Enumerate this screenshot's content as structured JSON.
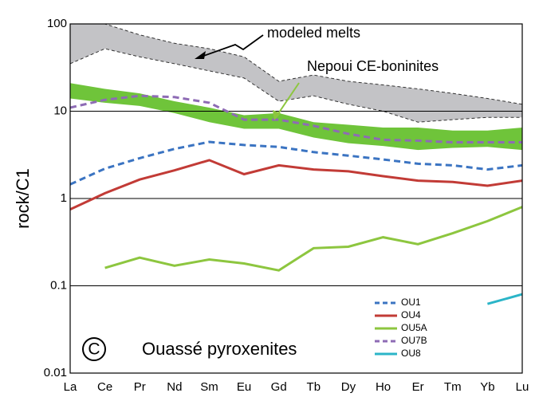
{
  "chart_data": {
    "type": "line",
    "y_label": "rock/C1",
    "log_scale": true,
    "grid": true,
    "ylim": [
      0.01,
      100
    ],
    "yticks": [
      0.01,
      0.1,
      1,
      10,
      100
    ],
    "categories": [
      "La",
      "Ce",
      "Pr",
      "Nd",
      "Sm",
      "Eu",
      "Gd",
      "Tb",
      "Dy",
      "Ho",
      "Er",
      "Tm",
      "Yb",
      "Lu"
    ],
    "panel_label": "C",
    "annotation": "Ouassé pyroxenites",
    "bands": [
      {
        "name": "modeled melts",
        "color": "#c3c3c6",
        "text_color": "#000000",
        "upper": [
          100,
          100,
          75,
          60,
          52,
          42,
          22,
          26,
          22,
          20,
          18,
          16,
          14,
          12
        ],
        "lower": [
          35,
          52,
          42,
          35,
          29,
          24,
          13,
          15,
          12,
          10,
          7.5,
          8,
          8.5,
          8.5
        ]
      },
      {
        "name": "Nepoui CE-boninites",
        "color": "#6fc43a",
        "text_color": "#8dc63f",
        "upper": [
          21,
          18,
          16,
          13,
          11,
          9,
          9.5,
          7.5,
          7,
          6.5,
          6.5,
          6,
          6,
          6.5
        ],
        "lower": [
          14,
          12.5,
          11.5,
          9.5,
          7.5,
          6.3,
          6.3,
          5,
          4.3,
          4,
          3.6,
          3.8,
          3.9,
          3.6
        ]
      }
    ],
    "series": [
      {
        "name": "OU1",
        "color": "#3b74c2",
        "dashed": true,
        "values": [
          1.45,
          2.2,
          2.9,
          3.7,
          4.45,
          4.1,
          3.9,
          3.4,
          3.1,
          2.8,
          2.5,
          2.4,
          2.15,
          2.4
        ]
      },
      {
        "name": "OU4",
        "color": "#c23b36",
        "dashed": false,
        "values": [
          0.75,
          1.15,
          1.65,
          2.1,
          2.75,
          1.9,
          2.4,
          2.15,
          2.05,
          1.8,
          1.6,
          1.55,
          1.4,
          1.6
        ]
      },
      {
        "name": "OU5A",
        "color": "#8dc63f",
        "dashed": false,
        "values": [
          null,
          0.16,
          0.21,
          0.17,
          0.2,
          0.18,
          0.15,
          0.27,
          0.28,
          0.36,
          0.3,
          0.4,
          0.55,
          0.8
        ]
      },
      {
        "name": "OU7B",
        "color": "#8e6bb5",
        "dashed": true,
        "values": [
          11,
          13.5,
          15,
          14.5,
          12.5,
          8,
          8,
          6.8,
          5.5,
          4.7,
          4.6,
          4.4,
          4.4,
          4.4
        ]
      },
      {
        "name": "OU8",
        "color": "#2bb5c8",
        "dashed": false,
        "values": [
          null,
          null,
          null,
          null,
          null,
          null,
          null,
          null,
          null,
          null,
          null,
          null,
          0.062,
          0.08
        ]
      }
    ]
  }
}
